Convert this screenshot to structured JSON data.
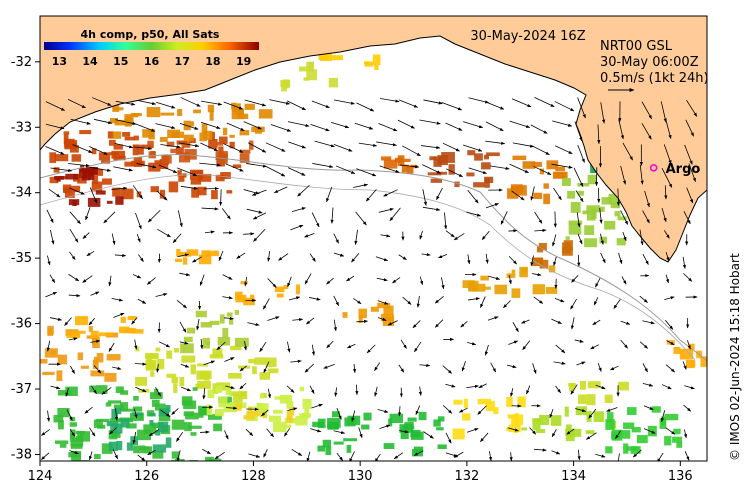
{
  "map": {
    "date_label": "30-May-2024 16Z",
    "product_label": "NRT00 GSL",
    "product_time": "30-May 06:00Z",
    "scale_label": "0.5m/s (1kt 24h)",
    "credit": "© IMOS 02-Jun-2024 15:18 Hobart",
    "colorbar_title": "4h comp, p50, All Sats",
    "colorbar_ticks": [
      "13",
      "14",
      "15",
      "16",
      "17",
      "18",
      "19"
    ],
    "colorbar_range": [
      12.5,
      19.5
    ],
    "x_ticks": [
      "124",
      "126",
      "128",
      "130",
      "132",
      "134",
      "136"
    ],
    "y_ticks": [
      "-32",
      "-33",
      "-34",
      "-35",
      "-36",
      "-37",
      "-38"
    ],
    "lon_range": [
      124,
      136.5
    ],
    "lat_range": [
      -38.1,
      -31.3
    ],
    "markers": [
      {
        "name": "Argo",
        "lon": 135.5,
        "lat": -33.62,
        "color": "#ff00cc"
      }
    ],
    "colors": {
      "land": "#ffcc99",
      "coast": "#000000",
      "ocean": "#ffffff",
      "bathymetry": "#999999"
    }
  }
}
